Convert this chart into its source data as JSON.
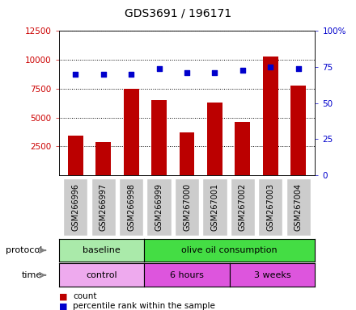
{
  "title": "GDS3691 / 196171",
  "samples": [
    "GSM266996",
    "GSM266997",
    "GSM266998",
    "GSM266999",
    "GSM267000",
    "GSM267001",
    "GSM267002",
    "GSM267003",
    "GSM267004"
  ],
  "counts": [
    3400,
    2900,
    7500,
    6500,
    3700,
    6300,
    4600,
    10300,
    7800
  ],
  "percentile_ranks": [
    70,
    70,
    70,
    74,
    71,
    71,
    73,
    75,
    74
  ],
  "bar_color": "#bb0000",
  "dot_color": "#0000cc",
  "left_axis_color": "#cc0000",
  "right_axis_color": "#0000cc",
  "ylim_left": [
    0,
    12500
  ],
  "ylim_right": [
    0,
    100
  ],
  "yticks_left": [
    2500,
    5000,
    7500,
    10000,
    12500
  ],
  "yticks_right": [
    0,
    25,
    50,
    75,
    100
  ],
  "ytick_labels_left": [
    "2500",
    "5000",
    "7500",
    "10000",
    "12500"
  ],
  "ytick_labels_right": [
    "0",
    "25",
    "50",
    "75",
    "100%"
  ],
  "protocol_groups": [
    {
      "label": "baseline",
      "start": 0,
      "end": 3,
      "color": "#aaeaaa"
    },
    {
      "label": "olive oil consumption",
      "start": 3,
      "end": 9,
      "color": "#44dd44"
    }
  ],
  "time_groups": [
    {
      "label": "control",
      "start": 0,
      "end": 3,
      "color": "#eeaaee"
    },
    {
      "label": "6 hours",
      "start": 3,
      "end": 6,
      "color": "#dd55dd"
    },
    {
      "label": "3 weeks",
      "start": 6,
      "end": 9,
      "color": "#dd55dd"
    }
  ],
  "legend_count_label": "count",
  "legend_pct_label": "percentile rank within the sample",
  "protocol_label": "protocol",
  "time_label": "time",
  "background_color": "#ffffff",
  "tick_area_color": "#cccccc",
  "figsize": [
    4.4,
    3.84
  ],
  "dpi": 100
}
